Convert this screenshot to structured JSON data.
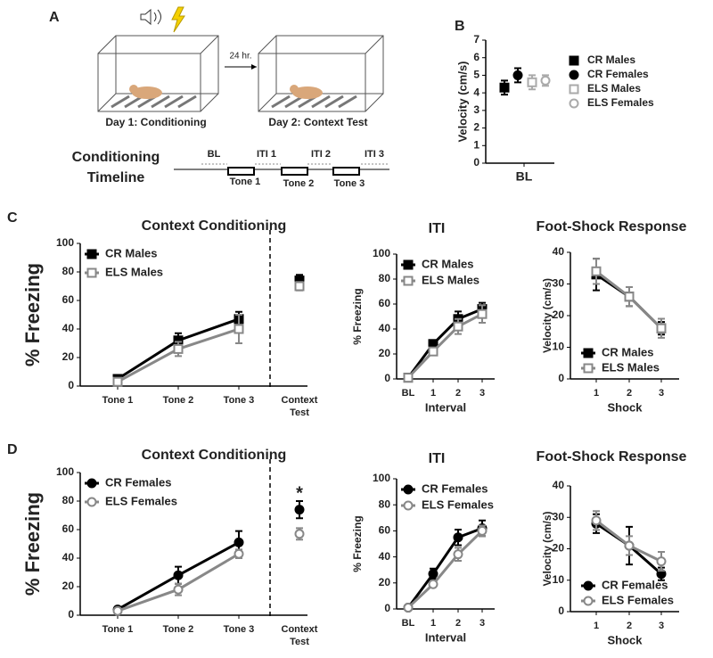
{
  "panel_labels": [
    "A",
    "B",
    "C",
    "D"
  ],
  "panel_a": {
    "delay": "24 hr.",
    "day1": "Day 1: Conditioning",
    "day2": "Day 2: Context Test",
    "timeline_title": [
      "Conditioning",
      "Timeline"
    ],
    "periods": [
      "BL",
      "ITI 1",
      "ITI 2",
      "ITI 3"
    ],
    "tones": [
      "Tone 1",
      "Tone 2",
      "Tone 3"
    ]
  },
  "chart_data": [
    {
      "type": "dot",
      "ylabel": "Velocity (cm/s)",
      "categories": [
        "BL"
      ],
      "ylim": [
        0,
        7
      ],
      "yticks": [
        0,
        1,
        2,
        3,
        4,
        5,
        6,
        7
      ],
      "legend": "right",
      "series": [
        {
          "name": "CR Males",
          "color": "#000000",
          "marker": "square",
          "filled": true,
          "values": [
            4.3
          ],
          "errors": [
            0.4
          ]
        },
        {
          "name": "CR Females",
          "color": "#000000",
          "marker": "circle",
          "filled": true,
          "values": [
            5.0
          ],
          "errors": [
            0.4
          ]
        },
        {
          "name": "ELS Males",
          "color": "#aaaaaa",
          "marker": "square",
          "filled": false,
          "values": [
            4.6
          ],
          "errors": [
            0.4
          ]
        },
        {
          "name": "ELS Females",
          "color": "#aaaaaa",
          "marker": "circle",
          "filled": false,
          "values": [
            4.7
          ],
          "errors": [
            0.3
          ]
        }
      ]
    },
    {
      "type": "line",
      "title": "Context Conditioning",
      "ylabel": "% Freezing",
      "categories": [
        "Tone 1",
        "Tone 2",
        "Tone 3"
      ],
      "test_label": [
        "Context",
        "Test"
      ],
      "ylim": [
        0,
        100
      ],
      "yticks": [
        0,
        20,
        40,
        60,
        80,
        100
      ],
      "legend": "upper left",
      "series": [
        {
          "name": "CR Males",
          "color": "#000000",
          "marker": "square",
          "filled": true,
          "values": [
            5,
            32,
            47
          ],
          "errors": [
            2,
            5,
            5
          ],
          "test_value": 74,
          "test_error": 4
        },
        {
          "name": "ELS Males",
          "color": "#888888",
          "marker": "square",
          "filled": false,
          "values": [
            3,
            26,
            40
          ],
          "errors": [
            2,
            5,
            10
          ],
          "test_value": 70,
          "test_error": 3
        }
      ]
    },
    {
      "type": "line",
      "title": "ITI",
      "ylabel": "% Freezing",
      "xlabel": "Interval",
      "categories": [
        "BL",
        "1",
        "2",
        "3"
      ],
      "ylim": [
        0,
        100
      ],
      "yticks": [
        0,
        20,
        40,
        60,
        80,
        100
      ],
      "legend": "upper left",
      "series": [
        {
          "name": "CR Males",
          "color": "#000000",
          "marker": "square",
          "filled": true,
          "values": [
            1,
            28,
            48,
            56
          ],
          "errors": [
            1,
            3,
            6,
            5
          ]
        },
        {
          "name": "ELS Males",
          "color": "#888888",
          "marker": "square",
          "filled": false,
          "values": [
            1,
            22,
            42,
            52
          ],
          "errors": [
            1,
            3,
            6,
            7
          ]
        }
      ]
    },
    {
      "type": "line",
      "title": "Foot-Shock Response",
      "ylabel": "Velocity (cm/s)",
      "xlabel": "Shock",
      "categories": [
        "1",
        "2",
        "3"
      ],
      "ylim": [
        0,
        40
      ],
      "yticks": [
        0,
        10,
        20,
        30,
        40
      ],
      "legend": "lower left",
      "series": [
        {
          "name": "CR Males",
          "color": "#000000",
          "marker": "square",
          "filled": true,
          "values": [
            33,
            26,
            16
          ],
          "errors": [
            5,
            3,
            2
          ]
        },
        {
          "name": "ELS Males",
          "color": "#888888",
          "marker": "square",
          "filled": false,
          "values": [
            34,
            26,
            16
          ],
          "errors": [
            4,
            3,
            3
          ]
        }
      ]
    },
    {
      "type": "line",
      "title": "Context Conditioning",
      "ylabel": "% Freezing",
      "categories": [
        "Tone 1",
        "Tone 2",
        "Tone 3"
      ],
      "test_label": [
        "Context",
        "Test"
      ],
      "ylim": [
        0,
        100
      ],
      "yticks": [
        0,
        20,
        40,
        60,
        80,
        100
      ],
      "legend": "upper left",
      "annotation": "*",
      "series": [
        {
          "name": "CR Females",
          "color": "#000000",
          "marker": "circle",
          "filled": true,
          "values": [
            4,
            28,
            51
          ],
          "errors": [
            1,
            6,
            8
          ],
          "test_value": 74,
          "test_error": 6
        },
        {
          "name": "ELS Females",
          "color": "#888888",
          "marker": "circle",
          "filled": false,
          "values": [
            3,
            18,
            43
          ],
          "errors": [
            1,
            4,
            3
          ],
          "test_value": 57,
          "test_error": 4
        }
      ]
    },
    {
      "type": "line",
      "title": "ITI",
      "ylabel": "% Freezing",
      "xlabel": "Interval",
      "categories": [
        "BL",
        "1",
        "2",
        "3"
      ],
      "ylim": [
        0,
        100
      ],
      "yticks": [
        0,
        20,
        40,
        60,
        80,
        100
      ],
      "legend": "upper left",
      "series": [
        {
          "name": "CR Females",
          "color": "#000000",
          "marker": "circle",
          "filled": true,
          "values": [
            1,
            27,
            55,
            62
          ],
          "errors": [
            1,
            4,
            6,
            6
          ]
        },
        {
          "name": "ELS Females",
          "color": "#888888",
          "marker": "circle",
          "filled": false,
          "values": [
            1,
            19,
            42,
            60
          ],
          "errors": [
            1,
            2,
            5,
            4
          ]
        }
      ]
    },
    {
      "type": "line",
      "title": "Foot-Shock Response",
      "ylabel": "Velocity (cm/s)",
      "xlabel": "Shock",
      "categories": [
        "1",
        "2",
        "3"
      ],
      "ylim": [
        0,
        40
      ],
      "yticks": [
        0,
        10,
        20,
        30,
        40
      ],
      "legend": "lower left",
      "series": [
        {
          "name": "CR Females",
          "color": "#000000",
          "marker": "circle",
          "filled": true,
          "values": [
            28,
            21,
            12
          ],
          "errors": [
            3,
            6,
            2
          ]
        },
        {
          "name": "ELS Females",
          "color": "#888888",
          "marker": "circle",
          "filled": false,
          "values": [
            29,
            21,
            16
          ],
          "errors": [
            3,
            3,
            3
          ]
        }
      ]
    }
  ]
}
